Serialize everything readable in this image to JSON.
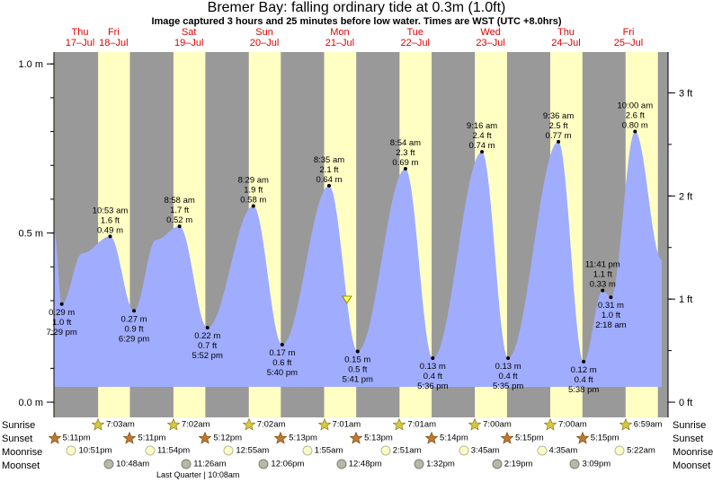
{
  "title": "Bremer Bay: falling  ordinary tide at 0.3m (1.0ft)",
  "subtitle": "Image captured 3 hours and 25 minutes before low water. Times are WST (UTC +8.0hrs)",
  "colors": {
    "night": "#999999",
    "day": "#ffffc4",
    "tide": "#a0adff",
    "date_label": "#e00000",
    "marker": "#ffff40"
  },
  "chart_data": {
    "type": "area",
    "title": "Bremer Bay: falling  ordinary tide at 0.3m (1.0ft)",
    "y_unit_left": "m",
    "y_unit_right": "ft",
    "ylim": [
      -0.045,
      1.035
    ],
    "left_ticks": [
      {
        "value": 0.0,
        "label": "0.0 m"
      },
      {
        "value": 0.5,
        "label": "0.5 m"
      },
      {
        "value": 1.0,
        "label": "1.0 m"
      }
    ],
    "right_ticks": [
      {
        "value": 0.0,
        "label": "0 ft"
      },
      {
        "value": 0.3048,
        "label": "1 ft"
      },
      {
        "value": 0.6096,
        "label": "2 ft"
      },
      {
        "value": 0.9144,
        "label": "3 ft"
      }
    ],
    "days": [
      {
        "dow": "Thu",
        "date": "17–Jul"
      },
      {
        "dow": "Fri",
        "date": "18–Jul"
      },
      {
        "dow": "Sat",
        "date": "19–Jul"
      },
      {
        "dow": "Sun",
        "date": "20–Jul"
      },
      {
        "dow": "Mon",
        "date": "21–Jul"
      },
      {
        "dow": "Tue",
        "date": "22–Jul"
      },
      {
        "dow": "Wed",
        "date": "23–Jul"
      },
      {
        "dow": "Thu",
        "date": "24–Jul"
      },
      {
        "dow": "Fri",
        "date": "25–Jul"
      }
    ],
    "x_start": "2025-07-17 17:00",
    "x_end": "2025-07-25 20:30",
    "curve_start": {
      "time": "2025-07-17 17:10",
      "value": 0.5
    },
    "curve_end": {
      "time": "2025-07-25 18:30",
      "value": 0.42
    },
    "extremes": [
      {
        "time": "2025-07-17 19:29",
        "value": 0.29,
        "kind": "low",
        "labels": [
          "0.29 m",
          "1.0 ft",
          "7:29 pm"
        ]
      },
      {
        "time": "2025-07-18 02:00",
        "value": 0.44,
        "kind": "shoulder"
      },
      {
        "time": "2025-07-18 10:53",
        "value": 0.49,
        "kind": "high",
        "labels": [
          "10:53 am",
          "1.6 ft",
          "0.49 m"
        ]
      },
      {
        "time": "2025-07-18 18:29",
        "value": 0.27,
        "kind": "low",
        "labels": [
          "0.27 m",
          "0.9 ft",
          "6:29 pm"
        ]
      },
      {
        "time": "2025-07-19 01:30",
        "value": 0.48,
        "kind": "shoulder"
      },
      {
        "time": "2025-07-19 08:58",
        "value": 0.52,
        "kind": "high",
        "labels": [
          "8:58 am",
          "1.7 ft",
          "0.52 m"
        ]
      },
      {
        "time": "2025-07-19 17:52",
        "value": 0.22,
        "kind": "low",
        "labels": [
          "0.22 m",
          "0.7 ft",
          "5:52 pm"
        ]
      },
      {
        "time": "2025-07-20 08:29",
        "value": 0.58,
        "kind": "high",
        "labels": [
          "8:29 am",
          "1.9 ft",
          "0.58 m"
        ]
      },
      {
        "time": "2025-07-20 17:40",
        "value": 0.17,
        "kind": "low",
        "labels": [
          "0.17 m",
          "0.6 ft",
          "5:40 pm"
        ]
      },
      {
        "time": "2025-07-21 08:35",
        "value": 0.64,
        "kind": "high",
        "labels": [
          "8:35 am",
          "2.1 ft",
          "0.64 m"
        ]
      },
      {
        "time": "2025-07-21 17:41",
        "value": 0.15,
        "kind": "low",
        "labels": [
          "0.15 m",
          "0.5 ft",
          "5:41 pm"
        ]
      },
      {
        "time": "2025-07-22 08:54",
        "value": 0.69,
        "kind": "high",
        "labels": [
          "8:54 am",
          "2.3 ft",
          "0.69 m"
        ]
      },
      {
        "time": "2025-07-22 17:36",
        "value": 0.13,
        "kind": "low",
        "labels": [
          "0.13 m",
          "0.4 ft",
          "5:36 pm"
        ]
      },
      {
        "time": "2025-07-23 09:16",
        "value": 0.74,
        "kind": "high",
        "labels": [
          "9:16 am",
          "2.4 ft",
          "0.74 m"
        ]
      },
      {
        "time": "2025-07-23 17:35",
        "value": 0.13,
        "kind": "low",
        "labels": [
          "0.13 m",
          "0.4 ft",
          "5:35 pm"
        ]
      },
      {
        "time": "2025-07-24 09:36",
        "value": 0.77,
        "kind": "high",
        "labels": [
          "9:36 am",
          "2.5 ft",
          "0.77 m"
        ]
      },
      {
        "time": "2025-07-24 17:38",
        "value": 0.12,
        "kind": "low",
        "labels": [
          "0.12 m",
          "0.4 ft",
          "5:38 pm"
        ]
      },
      {
        "time": "2025-07-24 23:41",
        "value": 0.33,
        "kind": "high",
        "labels": [
          "11:41 pm",
          "1.1 ft",
          "0.33 m"
        ]
      },
      {
        "time": "2025-07-25 02:18",
        "value": 0.31,
        "kind": "low",
        "labels": [
          "0.31 m",
          "1.0 ft",
          "2:18 am"
        ]
      },
      {
        "time": "2025-07-25 10:00",
        "value": 0.8,
        "kind": "high",
        "labels": [
          "10:00 am",
          "2.6 ft",
          "0.80 m"
        ]
      }
    ],
    "current": {
      "time": "2025-07-21 14:16",
      "value": 0.3
    },
    "daylight": [
      {
        "rise": "2025-07-18 07:03",
        "set": "2025-07-18 17:11"
      },
      {
        "rise": "2025-07-19 07:02",
        "set": "2025-07-19 17:12"
      },
      {
        "rise": "2025-07-20 07:02",
        "set": "2025-07-20 17:13"
      },
      {
        "rise": "2025-07-21 07:01",
        "set": "2025-07-21 17:13"
      },
      {
        "rise": "2025-07-22 07:01",
        "set": "2025-07-22 17:14"
      },
      {
        "rise": "2025-07-23 07:00",
        "set": "2025-07-23 17:15"
      },
      {
        "rise": "2025-07-24 07:00",
        "set": "2025-07-24 17:15"
      },
      {
        "rise": "2025-07-25 06:59",
        "set": "2025-07-25 17:16"
      }
    ],
    "evening_day_start": "2025-07-17 17:00"
  },
  "bottom": {
    "labels": {
      "sunrise": "Sunrise",
      "sunset": "Sunset",
      "moonrise": "Moonrise",
      "moonset": "Moonset"
    },
    "sunrise": [
      {
        "time": "2025-07-18 07:03",
        "label": "7:03am"
      },
      {
        "time": "2025-07-19 07:02",
        "label": "7:02am"
      },
      {
        "time": "2025-07-20 07:02",
        "label": "7:02am"
      },
      {
        "time": "2025-07-21 07:01",
        "label": "7:01am"
      },
      {
        "time": "2025-07-22 07:01",
        "label": "7:01am"
      },
      {
        "time": "2025-07-23 07:00",
        "label": "7:00am"
      },
      {
        "time": "2025-07-24 07:00",
        "label": "7:00am"
      },
      {
        "time": "2025-07-25 06:59",
        "label": "6:59am"
      }
    ],
    "sunset": [
      {
        "time": "2025-07-17 17:11",
        "label": "5:11pm"
      },
      {
        "time": "2025-07-18 17:11",
        "label": "5:11pm"
      },
      {
        "time": "2025-07-19 17:12",
        "label": "5:12pm"
      },
      {
        "time": "2025-07-20 17:13",
        "label": "5:13pm"
      },
      {
        "time": "2025-07-21 17:13",
        "label": "5:13pm"
      },
      {
        "time": "2025-07-22 17:14",
        "label": "5:14pm"
      },
      {
        "time": "2025-07-23 17:15",
        "label": "5:15pm"
      },
      {
        "time": "2025-07-24 17:15",
        "label": "5:15pm"
      }
    ],
    "moonrise": [
      {
        "time": "2025-07-17 22:51",
        "label": "10:51pm"
      },
      {
        "time": "2025-07-18 23:54",
        "label": "11:54pm"
      },
      {
        "time": "2025-07-20 00:55",
        "label": "12:55am"
      },
      {
        "time": "2025-07-21 01:55",
        "label": "1:55am"
      },
      {
        "time": "2025-07-22 02:51",
        "label": "2:51am"
      },
      {
        "time": "2025-07-23 03:45",
        "label": "3:45am"
      },
      {
        "time": "2025-07-24 04:35",
        "label": "4:35am"
      },
      {
        "time": "2025-07-25 05:22",
        "label": "5:22am"
      }
    ],
    "moonset": [
      {
        "time": "2025-07-18 10:48",
        "label": "10:48am"
      },
      {
        "time": "2025-07-19 11:26",
        "label": "11:26am"
      },
      {
        "time": "2025-07-20 12:06",
        "label": "12:06pm"
      },
      {
        "time": "2025-07-21 12:48",
        "label": "12:48pm"
      },
      {
        "time": "2025-07-22 13:32",
        "label": "1:32pm"
      },
      {
        "time": "2025-07-23 14:19",
        "label": "2:19pm"
      },
      {
        "time": "2025-07-24 15:09",
        "label": "3:09pm"
      }
    ],
    "last_quarter": "Last Quarter | 10:08am"
  }
}
